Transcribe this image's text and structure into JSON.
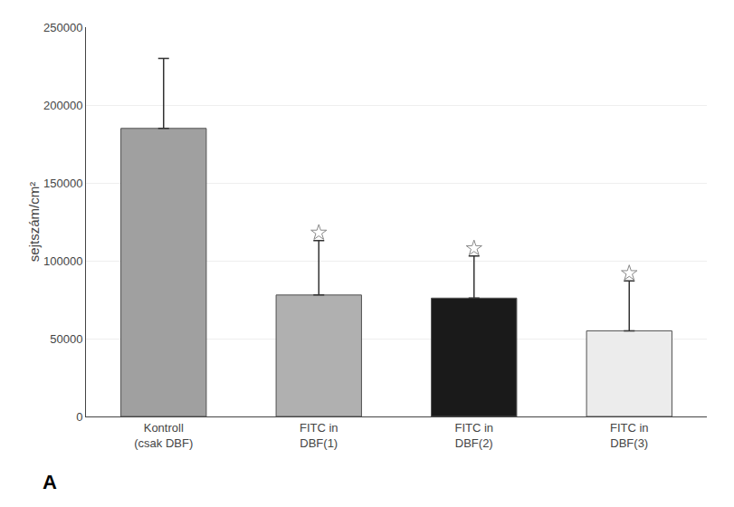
{
  "chart_data": {
    "type": "bar",
    "categories": [
      "Kontroll\n(csak DBF)",
      "FITC in\nDBF(1)",
      "FITC in\nDBF(2)",
      "FITC in\nDBF(3)"
    ],
    "ylabel": "sejtszám/cm²",
    "ylim": [
      0,
      250000
    ],
    "yticks": [
      0,
      50000,
      100000,
      150000,
      200000,
      250000
    ],
    "grid": true,
    "annotations": [
      "A"
    ],
    "series": [
      {
        "type": "bar",
        "values": [
          185000,
          78000,
          76000,
          55000
        ],
        "errors": [
          45000,
          35000,
          27000,
          32000
        ],
        "colors": [
          "#a0a0a0",
          "#b0b0b0",
          "#1a1a1a",
          "#ececec"
        ]
      },
      {
        "type": "scatter",
        "marker": "star",
        "color": "#ffffff",
        "values": [
          null,
          118000,
          108000,
          92000
        ]
      }
    ]
  }
}
